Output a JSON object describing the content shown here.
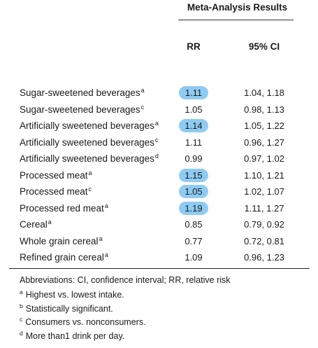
{
  "header": {
    "group_title": "Meta-Analysis Results",
    "rr_label": "RR",
    "ci_label": "95% CI"
  },
  "rows": [
    {
      "label": "Sugar-sweetened beverages",
      "sup": "a",
      "rr": "1.11",
      "ci": "1.04, 1.18",
      "highlight": true
    },
    {
      "label": "Sugar-sweetened beverages",
      "sup": "c",
      "rr": "1.05",
      "ci": "0.98, 1.13",
      "highlight": false
    },
    {
      "label": "Artificially sweetened beverages",
      "sup": "a",
      "rr": "1.14",
      "ci": "1.05, 1.22",
      "highlight": true
    },
    {
      "label": "Artificially sweetened beverages",
      "sup": "c",
      "rr": "1.11",
      "ci": "0.96, 1.27",
      "highlight": false
    },
    {
      "label": "Artificially sweetened beverages",
      "sup": "d",
      "rr": "0.99",
      "ci": "0.97, 1.02",
      "highlight": false
    },
    {
      "label": "Processed meat",
      "sup": "a",
      "rr": "1.15",
      "ci": "1.10, 1.21",
      "highlight": true
    },
    {
      "label": "Processed meat",
      "sup": "c",
      "rr": "1.05",
      "ci": "1.02, 1.07",
      "highlight": true
    },
    {
      "label": "Processed red meat",
      "sup": "a",
      "rr": "1.19",
      "ci": "1.11, 1.27",
      "highlight": true
    },
    {
      "label": "Cereal",
      "sup": "a",
      "rr": "0.85",
      "ci": "0.79, 0.92",
      "highlight": false
    },
    {
      "label": "Whole grain cereal",
      "sup": "a",
      "rr": "0.77",
      "ci": "0.72, 0.81",
      "highlight": false
    },
    {
      "label": "Refined grain cereal",
      "sup": "a",
      "rr": "1.09",
      "ci": "0.96, 1.23",
      "highlight": false
    }
  ],
  "footnotes": {
    "abbreviations": "Abbreviations: CI, confidence interval; RR, relative risk",
    "items": [
      {
        "mark": "a",
        "text": "Highest vs. lowest intake."
      },
      {
        "mark": "b",
        "text": "Statistically significant."
      },
      {
        "mark": "c",
        "text": "Consumers vs. nonconsumers."
      },
      {
        "mark": "d",
        "text": "More than1 drink per day."
      }
    ]
  },
  "colors": {
    "highlight": "#8ecbf2"
  }
}
